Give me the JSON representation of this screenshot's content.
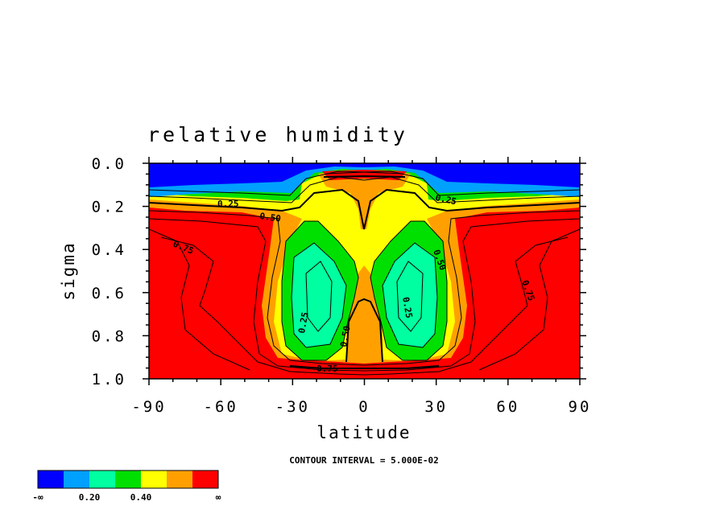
{
  "chart_data": {
    "type": "contour",
    "title": "relative humidity",
    "xlabel": "latitude",
    "ylabel": "sigma",
    "xlim": [
      -90,
      90
    ],
    "ylim": [
      0.0,
      1.0
    ],
    "y_inverted": true,
    "x_ticks": [
      "-90",
      "-60",
      "-30",
      "0",
      "30",
      "60",
      "90"
    ],
    "y_ticks": [
      "0.0",
      "0.2",
      "0.4",
      "0.6",
      "0.8",
      "1.0"
    ],
    "contour_interval_note": "CONTOUR INTERVAL = 5.000E-02",
    "contour_labels": [
      "0.25",
      "0.25",
      "0.50",
      "0.50",
      "0.75",
      "0.75",
      "0.25",
      "0.25",
      "0.50",
      "0.75"
    ],
    "colorbar": {
      "colors": [
        "#0000ff",
        "#00a0ff",
        "#00ffa0",
        "#00e000",
        "#ffff00",
        "#ffa000",
        "#ff0000"
      ],
      "labels": [
        "-∞",
        "0.20",
        "0.40",
        "∞"
      ]
    }
  }
}
